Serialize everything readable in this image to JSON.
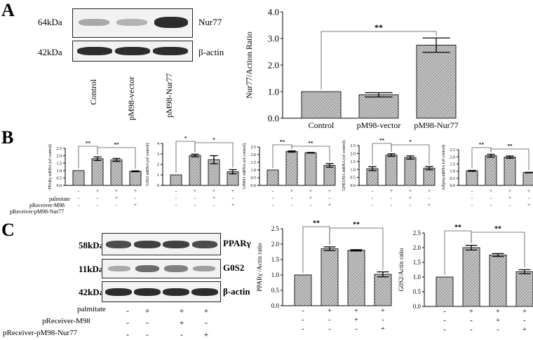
{
  "panels": {
    "a": "A",
    "b": "B",
    "c": "C"
  },
  "panel_a": {
    "blot": {
      "kda": [
        "64kDa",
        "42kDa"
      ],
      "proteins": [
        "Nur77",
        "β-actin"
      ],
      "lanes": [
        "Control",
        "pM98-vector",
        "pM98-Nur77"
      ],
      "intensity": {
        "Nur77": [
          0.35,
          0.3,
          0.95
        ],
        "β-actin": [
          0.95,
          0.95,
          0.95
        ]
      }
    }
  },
  "panel_b": {
    "conditions": [
      "palmitate",
      "pReceiver-M98",
      "pReceiver-pM98-Nur77"
    ],
    "signs": [
      [
        "-",
        "+",
        "+",
        "+"
      ],
      [
        "-",
        "-",
        "+",
        "-"
      ],
      [
        "-",
        "-",
        "-",
        "+"
      ]
    ]
  },
  "panel_c": {
    "blot": {
      "kda": [
        "58kDa",
        "11kDa",
        "42kDa"
      ],
      "proteins": [
        "PPARγ",
        "G0S2",
        "β-actin"
      ],
      "intensity": {
        "PPARγ": [
          0.8,
          0.85,
          0.85,
          0.8
        ],
        "G0S2": [
          0.35,
          0.65,
          0.55,
          0.4
        ],
        "β-actin": [
          0.95,
          0.95,
          0.95,
          0.95
        ]
      }
    },
    "conditions": [
      "palmitate",
      "pReceiver-M98",
      "pReceiver-pM98-Nur77"
    ],
    "signs": [
      [
        "-",
        "+",
        "+",
        "+"
      ],
      [
        "-",
        "-",
        "+",
        "-"
      ],
      [
        "-",
        "-",
        "-",
        "+"
      ]
    ]
  },
  "chart_data": [
    {
      "id": "a_chart",
      "type": "bar",
      "categories": [
        "Control",
        "pM98-vector",
        "pM98-Nur77"
      ],
      "values": [
        1.0,
        0.88,
        2.75
      ],
      "errors": [
        0.0,
        0.08,
        0.27
      ],
      "ylabel": "Nur77/Action Ratio",
      "ylim": [
        0,
        4
      ],
      "yticks": [
        "0.0",
        "1.0",
        "2.0",
        "3.0",
        "4.0"
      ],
      "sig": [
        {
          "from": 0,
          "to": 2,
          "label": "**"
        }
      ]
    },
    {
      "id": "b1",
      "type": "bar",
      "categories": [
        "1",
        "2",
        "3",
        "4"
      ],
      "values": [
        1.0,
        1.8,
        1.72,
        0.95
      ],
      "errors": [
        0.0,
        0.12,
        0.1,
        0.03
      ],
      "ylabel": "PPARγ mRNA (of control)",
      "ylim": [
        0,
        2.5
      ],
      "yticks": [
        "0.0",
        "0.5",
        "1.0",
        "1.5",
        "2.0",
        "2.5"
      ],
      "sig": [
        {
          "from": 0,
          "to": 1,
          "label": "**"
        },
        {
          "from": 1,
          "to": 3,
          "label": "**"
        }
      ]
    },
    {
      "id": "b2",
      "type": "bar",
      "categories": [
        "1",
        "2",
        "3",
        "4"
      ],
      "values": [
        1.0,
        2.85,
        2.45,
        1.3
      ],
      "errors": [
        0.0,
        0.12,
        0.38,
        0.2
      ],
      "ylabel": "G0S2 mRNA (of control)",
      "ylim": [
        0,
        4
      ],
      "yticks": [
        "0",
        "1",
        "2",
        "3",
        "4"
      ],
      "sig": [
        {
          "from": 0,
          "to": 1,
          "label": "*"
        },
        {
          "from": 1,
          "to": 3,
          "label": "*"
        }
      ]
    },
    {
      "id": "b3",
      "type": "bar",
      "categories": [
        "1",
        "2",
        "3",
        "4"
      ],
      "values": [
        1.0,
        2.2,
        2.12,
        1.3
      ],
      "errors": [
        0.0,
        0.04,
        0.02,
        0.12
      ],
      "ylabel": "GPR81 mRNA (of control)",
      "ylim": [
        0,
        2.5
      ],
      "yticks": [
        "0.0",
        "0.5",
        "1.0",
        "1.5",
        "2.0",
        "2.5"
      ],
      "sig": [
        {
          "from": 0,
          "to": 1,
          "label": "**"
        },
        {
          "from": 1,
          "to": 3,
          "label": "**"
        }
      ]
    },
    {
      "id": "b4",
      "type": "bar",
      "categories": [
        "1",
        "2",
        "3",
        "4"
      ],
      "values": [
        1.05,
        1.9,
        1.75,
        1.08
      ],
      "errors": [
        0.12,
        0.08,
        0.1,
        0.1
      ],
      "ylabel": "GPR109A mRNA (of control)",
      "ylim": [
        0,
        2.5
      ],
      "yticks": [
        "0.0",
        "0.5",
        "1.0",
        "1.5",
        "2.0",
        "2.5"
      ],
      "sig": [
        {
          "from": 0,
          "to": 1,
          "label": "**"
        },
        {
          "from": 1,
          "to": 3,
          "label": "*"
        }
      ]
    },
    {
      "id": "b5",
      "type": "bar",
      "categories": [
        "1",
        "2",
        "3",
        "4"
      ],
      "values": [
        1.02,
        2.08,
        1.98,
        0.9
      ],
      "errors": [
        0.03,
        0.1,
        0.08,
        0.02
      ],
      "ylabel": "Adipoq mRNA (of control)",
      "ylim": [
        0,
        2.5
      ],
      "yticks": [
        "0.0",
        "0.5",
        "1.0",
        "1.5",
        "2.0",
        "2.5"
      ],
      "sig": [
        {
          "from": 0,
          "to": 1,
          "label": "**"
        },
        {
          "from": 1,
          "to": 3,
          "label": "**"
        }
      ]
    },
    {
      "id": "c1",
      "type": "bar",
      "categories": [
        "1",
        "2",
        "3",
        "4"
      ],
      "values": [
        1.0,
        1.85,
        1.8,
        1.02
      ],
      "errors": [
        0.0,
        0.06,
        0.02,
        0.08
      ],
      "ylabel": "PPARγ /Actin ratio",
      "ylim": [
        0,
        2.5
      ],
      "yticks": [
        "0.0",
        "0.5",
        "1.0",
        "1.5",
        "2.0",
        "2.5"
      ],
      "sig": [
        {
          "from": 0,
          "to": 1,
          "label": "**"
        },
        {
          "from": 1,
          "to": 3,
          "label": "**"
        }
      ]
    },
    {
      "id": "c2",
      "type": "bar",
      "categories": [
        "1",
        "2",
        "3",
        "4"
      ],
      "values": [
        1.0,
        2.0,
        1.75,
        1.18
      ],
      "errors": [
        0.0,
        0.08,
        0.05,
        0.07
      ],
      "ylabel": "G0S2/Actin ratio",
      "ylim": [
        0,
        2.5
      ],
      "yticks": [
        "0.0",
        "0.5",
        "1.0",
        "1.5",
        "2.0",
        "2.5"
      ],
      "sig": [
        {
          "from": 0,
          "to": 1,
          "label": "**"
        },
        {
          "from": 1,
          "to": 3,
          "label": "**"
        }
      ]
    }
  ]
}
